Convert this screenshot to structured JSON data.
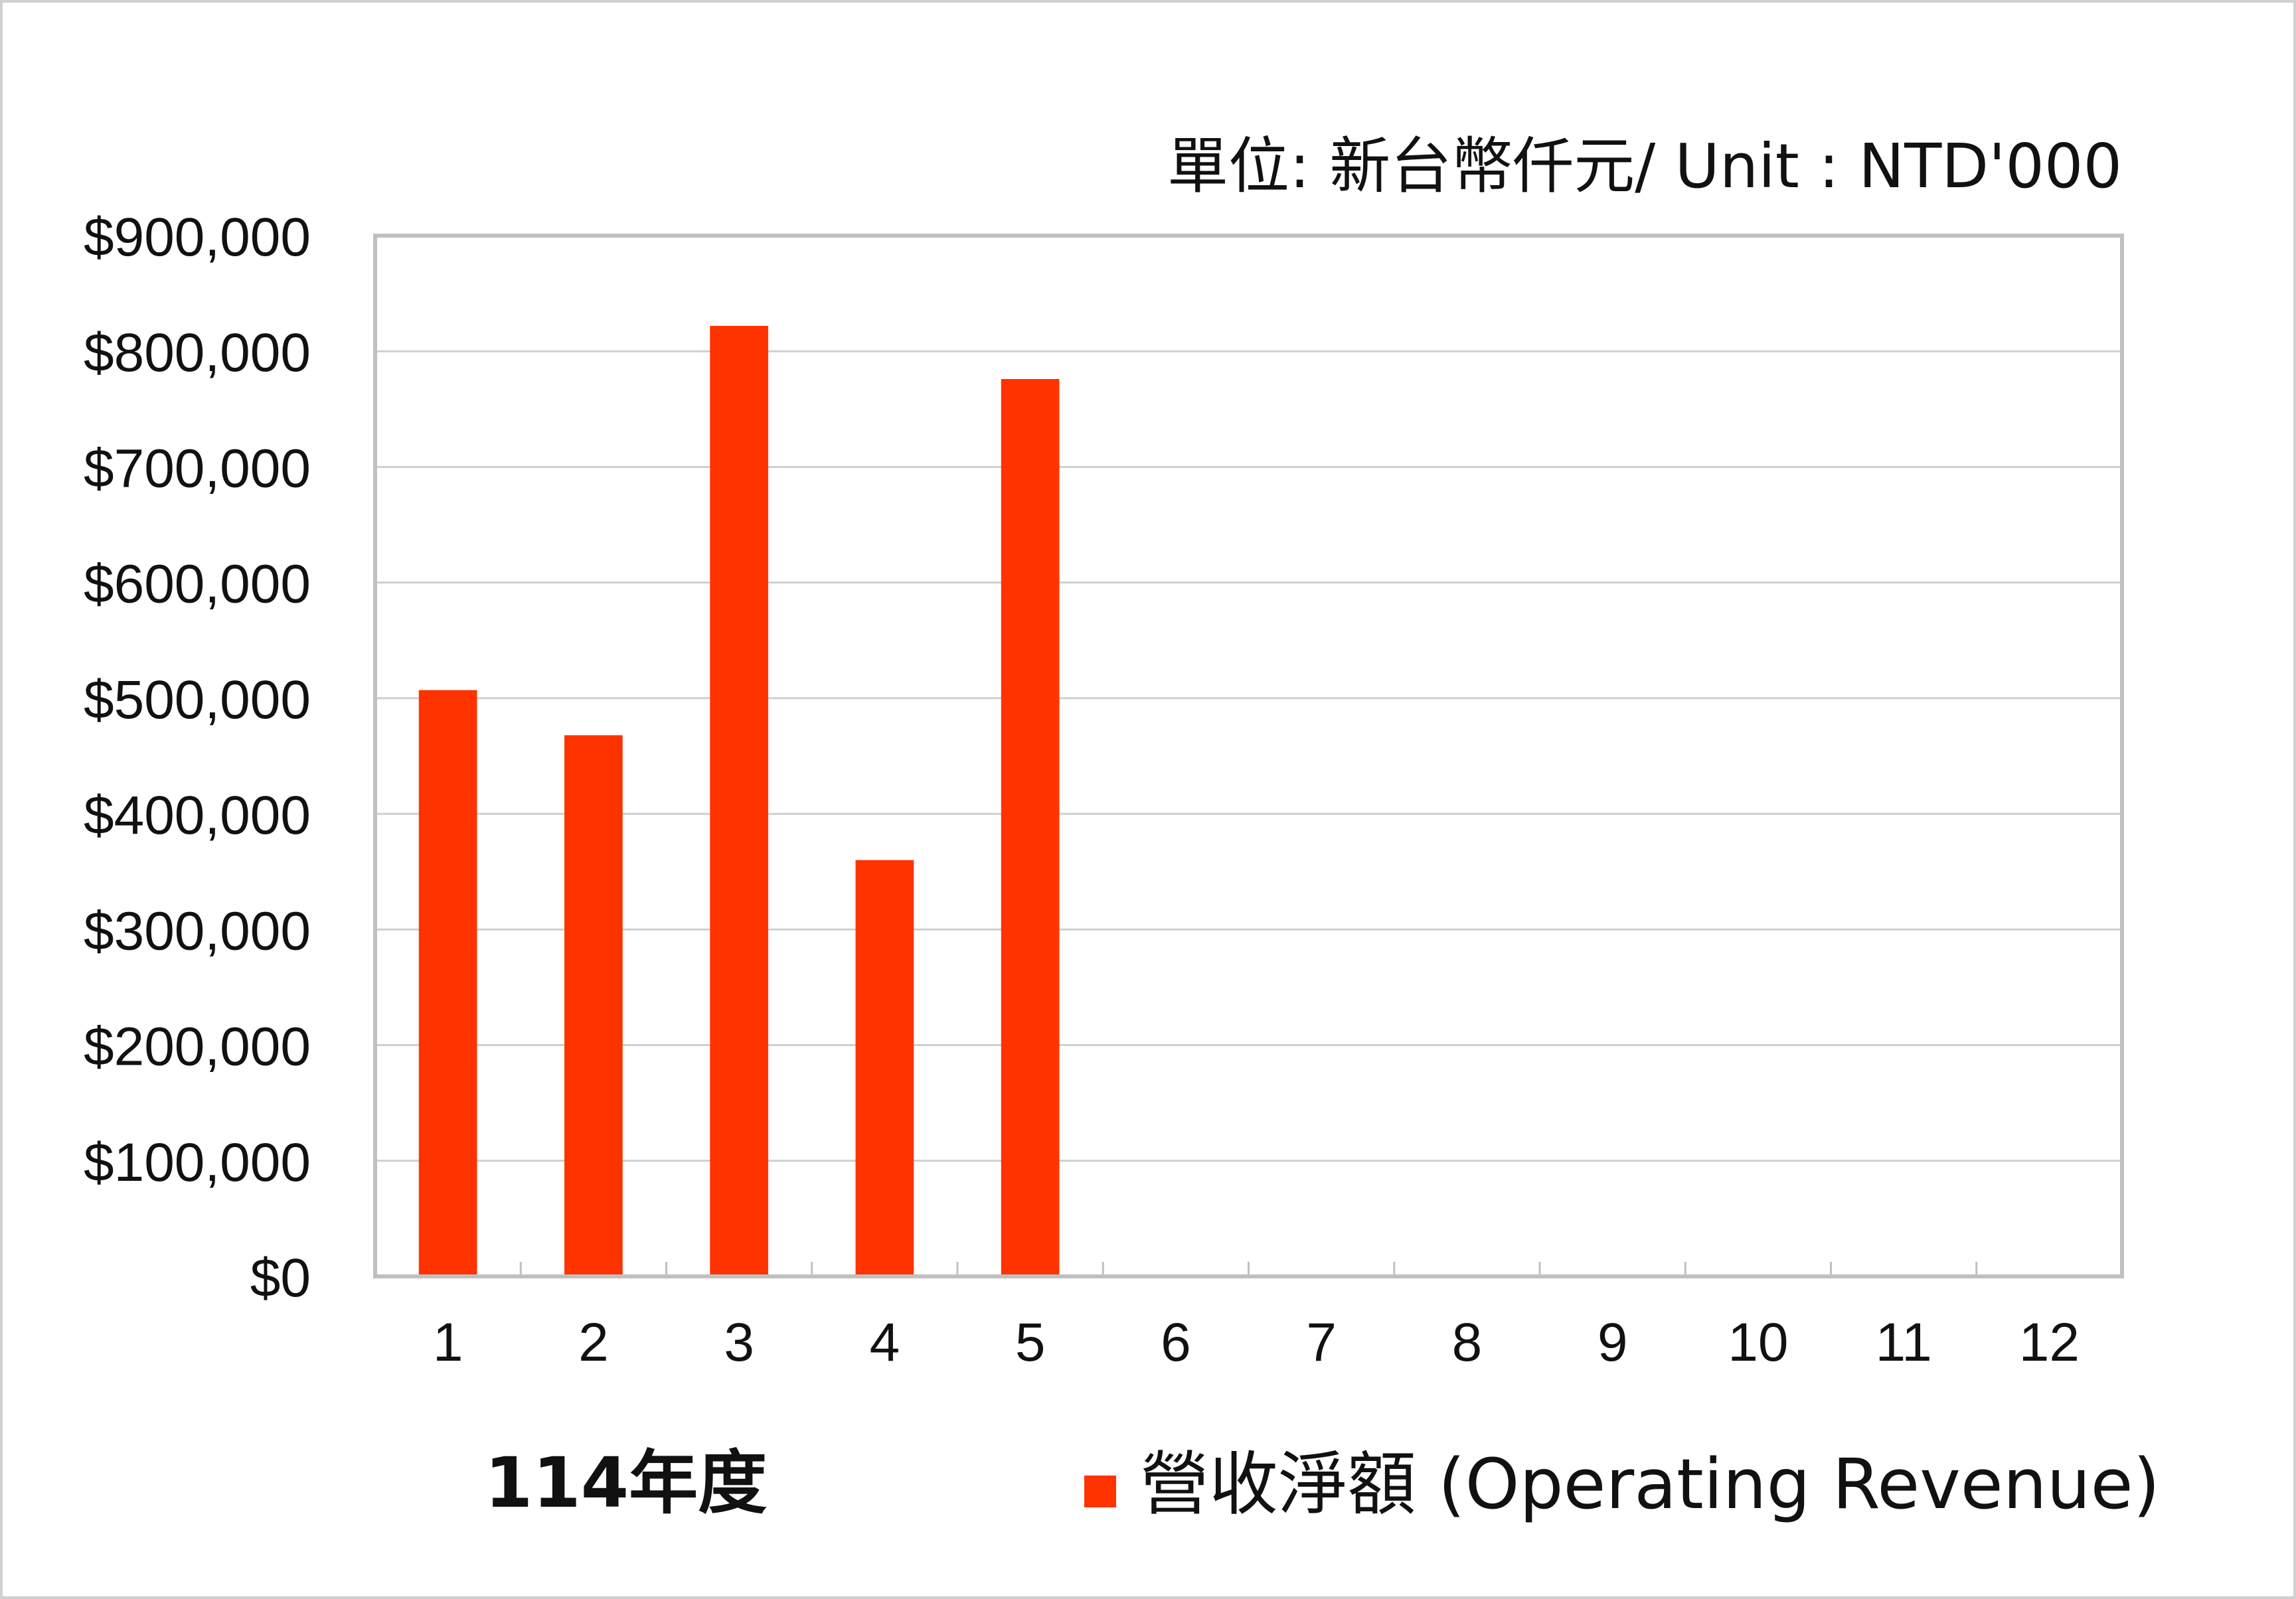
{
  "unit_label": "單位: 新台幣仟元/ Unit : NTD'000",
  "year_label": "114年度",
  "legend": {
    "label": "營收淨額 (Operating Revenue)",
    "color": "#ff3300"
  },
  "chart_data": {
    "type": "bar",
    "categories": [
      "1",
      "2",
      "3",
      "4",
      "5",
      "6",
      "7",
      "8",
      "9",
      "10",
      "11",
      "12"
    ],
    "series": [
      {
        "name": "營收淨額 (Operating Revenue)",
        "color": "#ff3300",
        "values": [
          507000,
          468000,
          822000,
          360000,
          776000,
          null,
          null,
          null,
          null,
          null,
          null,
          null
        ]
      }
    ],
    "ylim": [
      0,
      900000
    ],
    "yticks": [
      0,
      100000,
      200000,
      300000,
      400000,
      500000,
      600000,
      700000,
      800000,
      900000
    ],
    "ytick_labels": [
      "$0",
      "$100,000",
      "$200,000",
      "$300,000",
      "$400,000",
      "$500,000",
      "$600,000",
      "$700,000",
      "$800,000",
      "$900,000"
    ],
    "grid": true,
    "legend_position": "bottom"
  }
}
